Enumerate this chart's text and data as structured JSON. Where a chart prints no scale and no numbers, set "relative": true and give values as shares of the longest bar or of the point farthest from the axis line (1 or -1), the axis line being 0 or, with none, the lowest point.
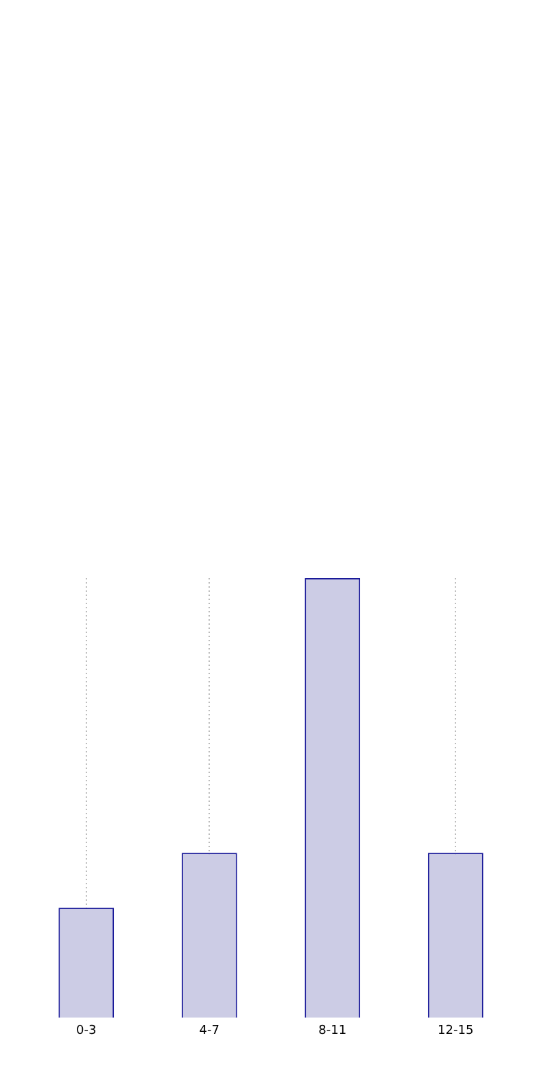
{
  "chart_data": {
    "type": "bar",
    "categories": [
      "0-3",
      "4-7",
      "8-11",
      "12-15"
    ],
    "values": [
      0.25,
      0.375,
      1,
      0.375
    ],
    "color": "#ccccE5",
    "relative": true,
    "grid": "x"
  }
}
